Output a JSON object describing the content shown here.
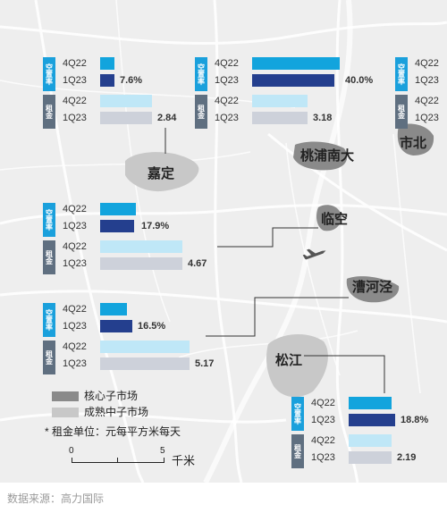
{
  "chart_data": {
    "type": "bar",
    "periods": [
      "4Q22",
      "1Q23"
    ],
    "vacancy_label": "空置率",
    "rent_label": "租金",
    "districts": [
      {
        "name": "嘉定",
        "vacancy": [
          {
            "period": "4Q22",
            "value": null
          },
          {
            "period": "1Q23",
            "value": 7.6
          }
        ],
        "vacancy_text": "7.6%",
        "rent": [
          {
            "period": "4Q22",
            "value": null
          },
          {
            "period": "1Q23",
            "value": 2.84
          }
        ],
        "rent_text": "2.84",
        "market": "成熟中子市场"
      },
      {
        "name": "桃浦南大",
        "vacancy": [
          {
            "period": "4Q22",
            "value": null
          },
          {
            "period": "1Q23",
            "value": 40.0
          }
        ],
        "vacancy_text": "40.0%",
        "rent": [
          {
            "period": "4Q22",
            "value": null
          },
          {
            "period": "1Q23",
            "value": 3.18
          }
        ],
        "rent_text": "3.18",
        "market": "核心子市场"
      },
      {
        "name": "市北",
        "vacancy": [],
        "rent": [],
        "market": "核心子市场"
      },
      {
        "name": "临空",
        "vacancy": [
          {
            "period": "4Q22",
            "value": null
          },
          {
            "period": "1Q23",
            "value": 17.9
          }
        ],
        "vacancy_text": "17.9%",
        "rent": [
          {
            "period": "4Q22",
            "value": null
          },
          {
            "period": "1Q23",
            "value": 4.67
          }
        ],
        "rent_text": "4.67",
        "market": "核心子市场"
      },
      {
        "name": "漕河泾",
        "vacancy": [
          {
            "period": "4Q22",
            "value": null
          },
          {
            "period": "1Q23",
            "value": 16.5
          }
        ],
        "vacancy_text": "16.5%",
        "rent": [
          {
            "period": "4Q22",
            "value": null
          },
          {
            "period": "1Q23",
            "value": 5.17
          }
        ],
        "rent_text": "5.17",
        "market": "核心子市场"
      },
      {
        "name": "松江",
        "vacancy": [
          {
            "period": "4Q22",
            "value": null
          },
          {
            "period": "1Q23",
            "value": 18.8
          }
        ],
        "vacancy_text": "18.8%",
        "rent": [
          {
            "period": "4Q22",
            "value": null
          },
          {
            "period": "1Q23",
            "value": 2.19
          }
        ],
        "rent_text": "2.19",
        "market": "成熟中子市场"
      }
    ],
    "legend": [
      {
        "label": "核心子市场",
        "color": "#8a8a8a"
      },
      {
        "label": "成熟中子市场",
        "color": "#c8c8c8"
      }
    ],
    "note": "* 租金单位：元每平方米每天",
    "scale": {
      "min_label": "0",
      "max_label": "5",
      "unit": "千米"
    },
    "source": "数据来源：高力国际"
  },
  "colors": {
    "vac_4q22": "#12a4dd",
    "vac_1q23": "#243f8e",
    "rent_4q22": "#bfe7f7",
    "rent_1q23": "#cdd1da",
    "tag_vac": "#1aa0dc",
    "tag_rent": "#5f6f80",
    "map_bg": "#eeeeee",
    "core": "#8a8a8a",
    "mature": "#c8c8c8"
  }
}
